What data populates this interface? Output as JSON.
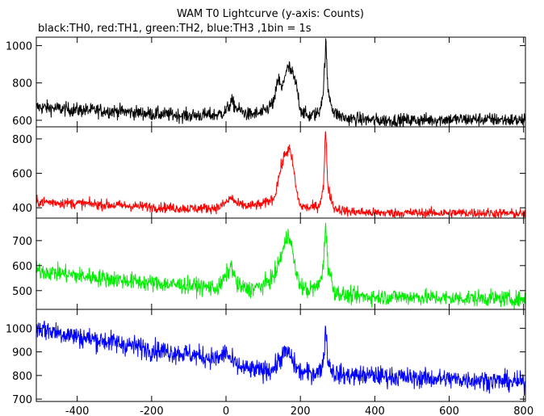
{
  "chart_data": {
    "type": "line",
    "title": "WAM T0 Lightcurve (y-axis: Counts)",
    "subtitle": "black:TH0, red:TH1, green:TH2, blue:TH3 ,1bin = 1s",
    "xlabel": "",
    "ylabel": "",
    "xlim": [
      -510,
      805
    ],
    "x_ticks": [
      -400,
      -200,
      0,
      200,
      400,
      600,
      800
    ],
    "grid": false,
    "legend": "none",
    "panels": [
      {
        "name": "TH0",
        "color": "#000000",
        "ylim": [
          565,
          1045
        ],
        "y_ticks": [
          600,
          800,
          1000
        ],
        "x": [
          -500,
          -400,
          -300,
          -200,
          -100,
          -20,
          0,
          15,
          30,
          60,
          100,
          130,
          140,
          150,
          160,
          170,
          180,
          190,
          200,
          220,
          250,
          262,
          268,
          274,
          290,
          320,
          400,
          500,
          600,
          700,
          800
        ],
        "values": [
          670,
          655,
          650,
          635,
          625,
          630,
          650,
          700,
          660,
          630,
          640,
          700,
          830,
          760,
          860,
          880,
          840,
          780,
          660,
          620,
          640,
          760,
          1020,
          760,
          640,
          610,
          600,
          600,
          605,
          605,
          600
        ]
      },
      {
        "name": "TH1",
        "color": "#ff0000",
        "ylim": [
          340,
          870
        ],
        "y_ticks": [
          400,
          600,
          800
        ],
        "x": [
          -500,
          -400,
          -300,
          -200,
          -100,
          -20,
          0,
          15,
          30,
          60,
          100,
          130,
          140,
          150,
          160,
          170,
          180,
          190,
          200,
          220,
          250,
          262,
          268,
          274,
          290,
          320,
          400,
          500,
          600,
          700,
          800
        ],
        "values": [
          435,
          425,
          415,
          405,
          395,
          400,
          430,
          460,
          420,
          410,
          420,
          460,
          560,
          650,
          720,
          740,
          650,
          490,
          410,
          400,
          410,
          520,
          860,
          520,
          400,
          380,
          370,
          370,
          370,
          370,
          365
        ]
      },
      {
        "name": "TH2",
        "color": "#00ee00",
        "ylim": [
          425,
          790
        ],
        "y_ticks": [
          500,
          600,
          700
        ],
        "x": [
          -500,
          -400,
          -300,
          -200,
          -100,
          -20,
          0,
          15,
          30,
          60,
          100,
          130,
          140,
          150,
          160,
          170,
          180,
          190,
          200,
          220,
          250,
          262,
          268,
          274,
          290,
          320,
          400,
          500,
          600,
          700,
          800
        ],
        "values": [
          580,
          560,
          545,
          530,
          520,
          510,
          560,
          600,
          520,
          505,
          520,
          560,
          600,
          650,
          690,
          740,
          640,
          560,
          520,
          500,
          520,
          600,
          780,
          600,
          500,
          480,
          475,
          475,
          470,
          470,
          465
        ]
      },
      {
        "name": "TH3",
        "color": "#0000ff",
        "ylim": [
          690,
          1080
        ],
        "y_ticks": [
          700,
          800,
          900,
          1000
        ],
        "x": [
          -500,
          -400,
          -300,
          -200,
          -100,
          -20,
          0,
          15,
          30,
          60,
          100,
          130,
          140,
          150,
          160,
          170,
          180,
          190,
          200,
          220,
          250,
          262,
          268,
          274,
          290,
          320,
          400,
          500,
          600,
          700,
          800
        ],
        "values": [
          1000,
          965,
          940,
          910,
          890,
          870,
          900,
          860,
          840,
          825,
          820,
          830,
          860,
          880,
          900,
          890,
          860,
          830,
          815,
          810,
          815,
          860,
          1010,
          860,
          810,
          800,
          800,
          790,
          785,
          780,
          770
        ]
      }
    ]
  }
}
